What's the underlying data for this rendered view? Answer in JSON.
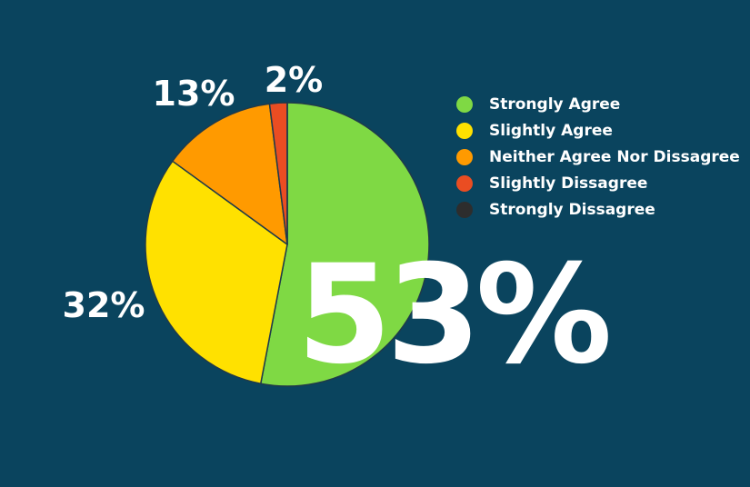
{
  "chart_data": {
    "type": "pie",
    "categories": [
      "Strongly Agree",
      "Slightly Agree",
      "Neither Agree Nor Dissagree",
      "Slightly Dissagree",
      "Strongly Dissagree"
    ],
    "values": [
      53,
      32,
      13,
      2,
      0
    ],
    "slice_labels": [
      "53%",
      "32%",
      "13%",
      "2%",
      ""
    ],
    "colors": [
      "#7fd944",
      "#ffe100",
      "#ff9a00",
      "#ea4d22",
      "#2d2d2d"
    ],
    "legend": {
      "placement": "right",
      "items": [
        {
          "label": "Strongly Agree",
          "color": "#7fd944"
        },
        {
          "label": "Slightly Agree",
          "color": "#ffe100"
        },
        {
          "label": "Neither Agree Nor Dissagree",
          "color": "#ff9a00"
        },
        {
          "label": "Slightly Dissagree",
          "color": "#ea4d22"
        },
        {
          "label": "Strongly Dissagree",
          "color": "#2d2d2d"
        }
      ]
    },
    "title": "",
    "background": "#0a445e"
  }
}
